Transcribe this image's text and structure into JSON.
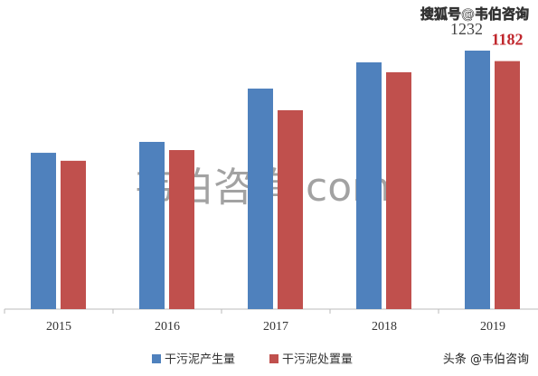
{
  "chart_data": {
    "type": "bar",
    "categories": [
      "2015",
      "2016",
      "2017",
      "2018",
      "2019"
    ],
    "series": [
      {
        "name": "干污泥产生量",
        "color": "#4f81bd",
        "label_color": "#444444",
        "values": [
          745,
          797,
          1051,
          1176,
          1232
        ],
        "value_labels": [
          null,
          null,
          null,
          null,
          "1232"
        ]
      },
      {
        "name": "干污泥处置量",
        "color": "#c0504d",
        "label_color": "#c0272d",
        "values": [
          707,
          758,
          948,
          1129,
          1182
        ],
        "value_labels": [
          null,
          null,
          null,
          null,
          "1182"
        ]
      }
    ],
    "ylim": [
      0,
      1400
    ],
    "grid": false,
    "legend": "bottom"
  },
  "watermarks": [
    "搜狐号@韦伯咨询",
    "韦伯咨询.com",
    "头条 @韦伯咨询"
  ]
}
